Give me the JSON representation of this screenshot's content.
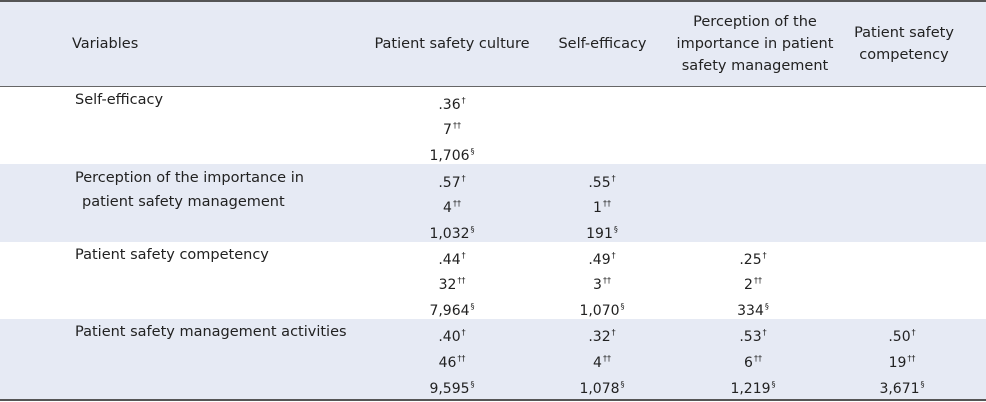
{
  "headers": {
    "variables": "Variables",
    "col1": "Patient safety culture",
    "col2": "Self-efficacy",
    "col3_line1": "Perception of the",
    "col3_line2": "importance in patient",
    "col3_line3": "safety management",
    "col4_line1": "Patient safety",
    "col4_line2": "competency"
  },
  "rows": [
    {
      "label_line1": "Self-efficacy",
      "cells": [
        {
          "r": ".36",
          "chi": "7",
          "n": "1,706"
        }
      ]
    },
    {
      "label_line1": "Perception of the importance in",
      "label_line2": "patient safety management",
      "cells": [
        {
          "r": ".57",
          "chi": "4",
          "n": "1,032"
        },
        {
          "r": ".55",
          "chi": "1",
          "n": "191"
        }
      ]
    },
    {
      "label_line1": "Patient safety competency",
      "cells": [
        {
          "r": ".44",
          "chi": "32",
          "n": "7,964"
        },
        {
          "r": ".49",
          "chi": "3",
          "n": "1,070"
        },
        {
          "r": ".25",
          "chi": "2",
          "n": "334"
        }
      ]
    },
    {
      "label_line1": "Patient safety management activities",
      "cells": [
        {
          "r": ".40",
          "chi": "46",
          "n": "9,595"
        },
        {
          "r": ".32",
          "chi": "4",
          "n": "1,078"
        },
        {
          "r": ".53",
          "chi": "6",
          "n": "1,219"
        },
        {
          "r": ".50",
          "chi": "19",
          "n": "3,671"
        }
      ]
    }
  ],
  "marks": {
    "dagger": "†",
    "double_dagger": "††",
    "section": "§"
  }
}
